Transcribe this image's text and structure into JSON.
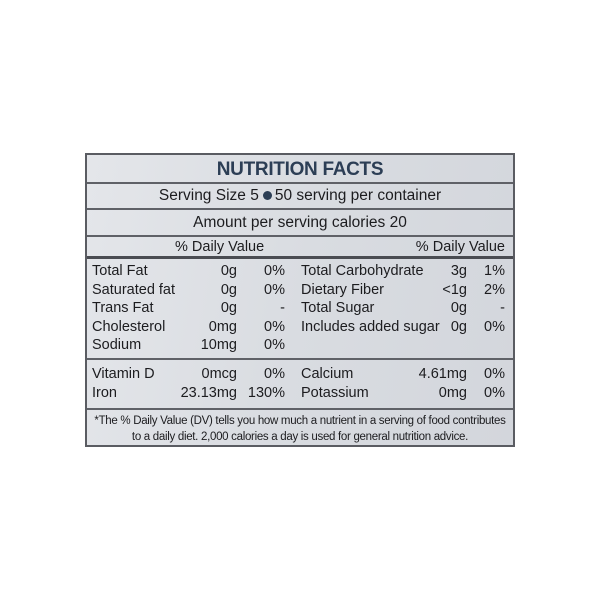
{
  "title": "NUTRITION FACTS",
  "serving": {
    "size": "Serving Size 5",
    "per_container": "50 serving per container"
  },
  "amount": "Amount per serving calories 20",
  "dv_header": {
    "left": "% Daily Value",
    "right": "% Daily Value"
  },
  "nutrients_left": [
    {
      "name": "Total Fat",
      "amount": "0g",
      "dv": "0%"
    },
    {
      "name": "Saturated fat",
      "amount": "0g",
      "dv": "0%"
    },
    {
      "name": "Trans Fat",
      "amount": "0g",
      "dv": "-"
    },
    {
      "name": "Cholesterol",
      "amount": "0mg",
      "dv": "0%"
    },
    {
      "name": "Sodium",
      "amount": "10mg",
      "dv": "0%"
    }
  ],
  "nutrients_right": [
    {
      "name": "Total Carbohydrate",
      "amount": "3g",
      "dv": "1%"
    },
    {
      "name": "Dietary Fiber",
      "amount": "<1g",
      "dv": "2%"
    },
    {
      "name": "Total Sugar",
      "amount": "0g",
      "dv": "-"
    },
    {
      "name": "Includes added sugar",
      "amount": "0g",
      "dv": "0%"
    }
  ],
  "vitamins_left": [
    {
      "name": "Vitamin D",
      "amount": "0mcg",
      "dv": "0%"
    },
    {
      "name": "Iron",
      "amount": "23.13mg",
      "dv": "130%"
    }
  ],
  "vitamins_right": [
    {
      "name": "Calcium",
      "amount": "4.61mg",
      "dv": "0%"
    },
    {
      "name": "Potassium",
      "amount": "0mg",
      "dv": "0%"
    }
  ],
  "footnote": {
    "line1": "*The % Daily Value (DV) tells you how much a nutrient in a serving of food contributes",
    "line2": "to a daily diet. 2,000 calories a day is used for general nutrition advice."
  },
  "colors": {
    "title": "#2c3e55",
    "border": "#5a5c62",
    "background": "#d9dce1"
  }
}
